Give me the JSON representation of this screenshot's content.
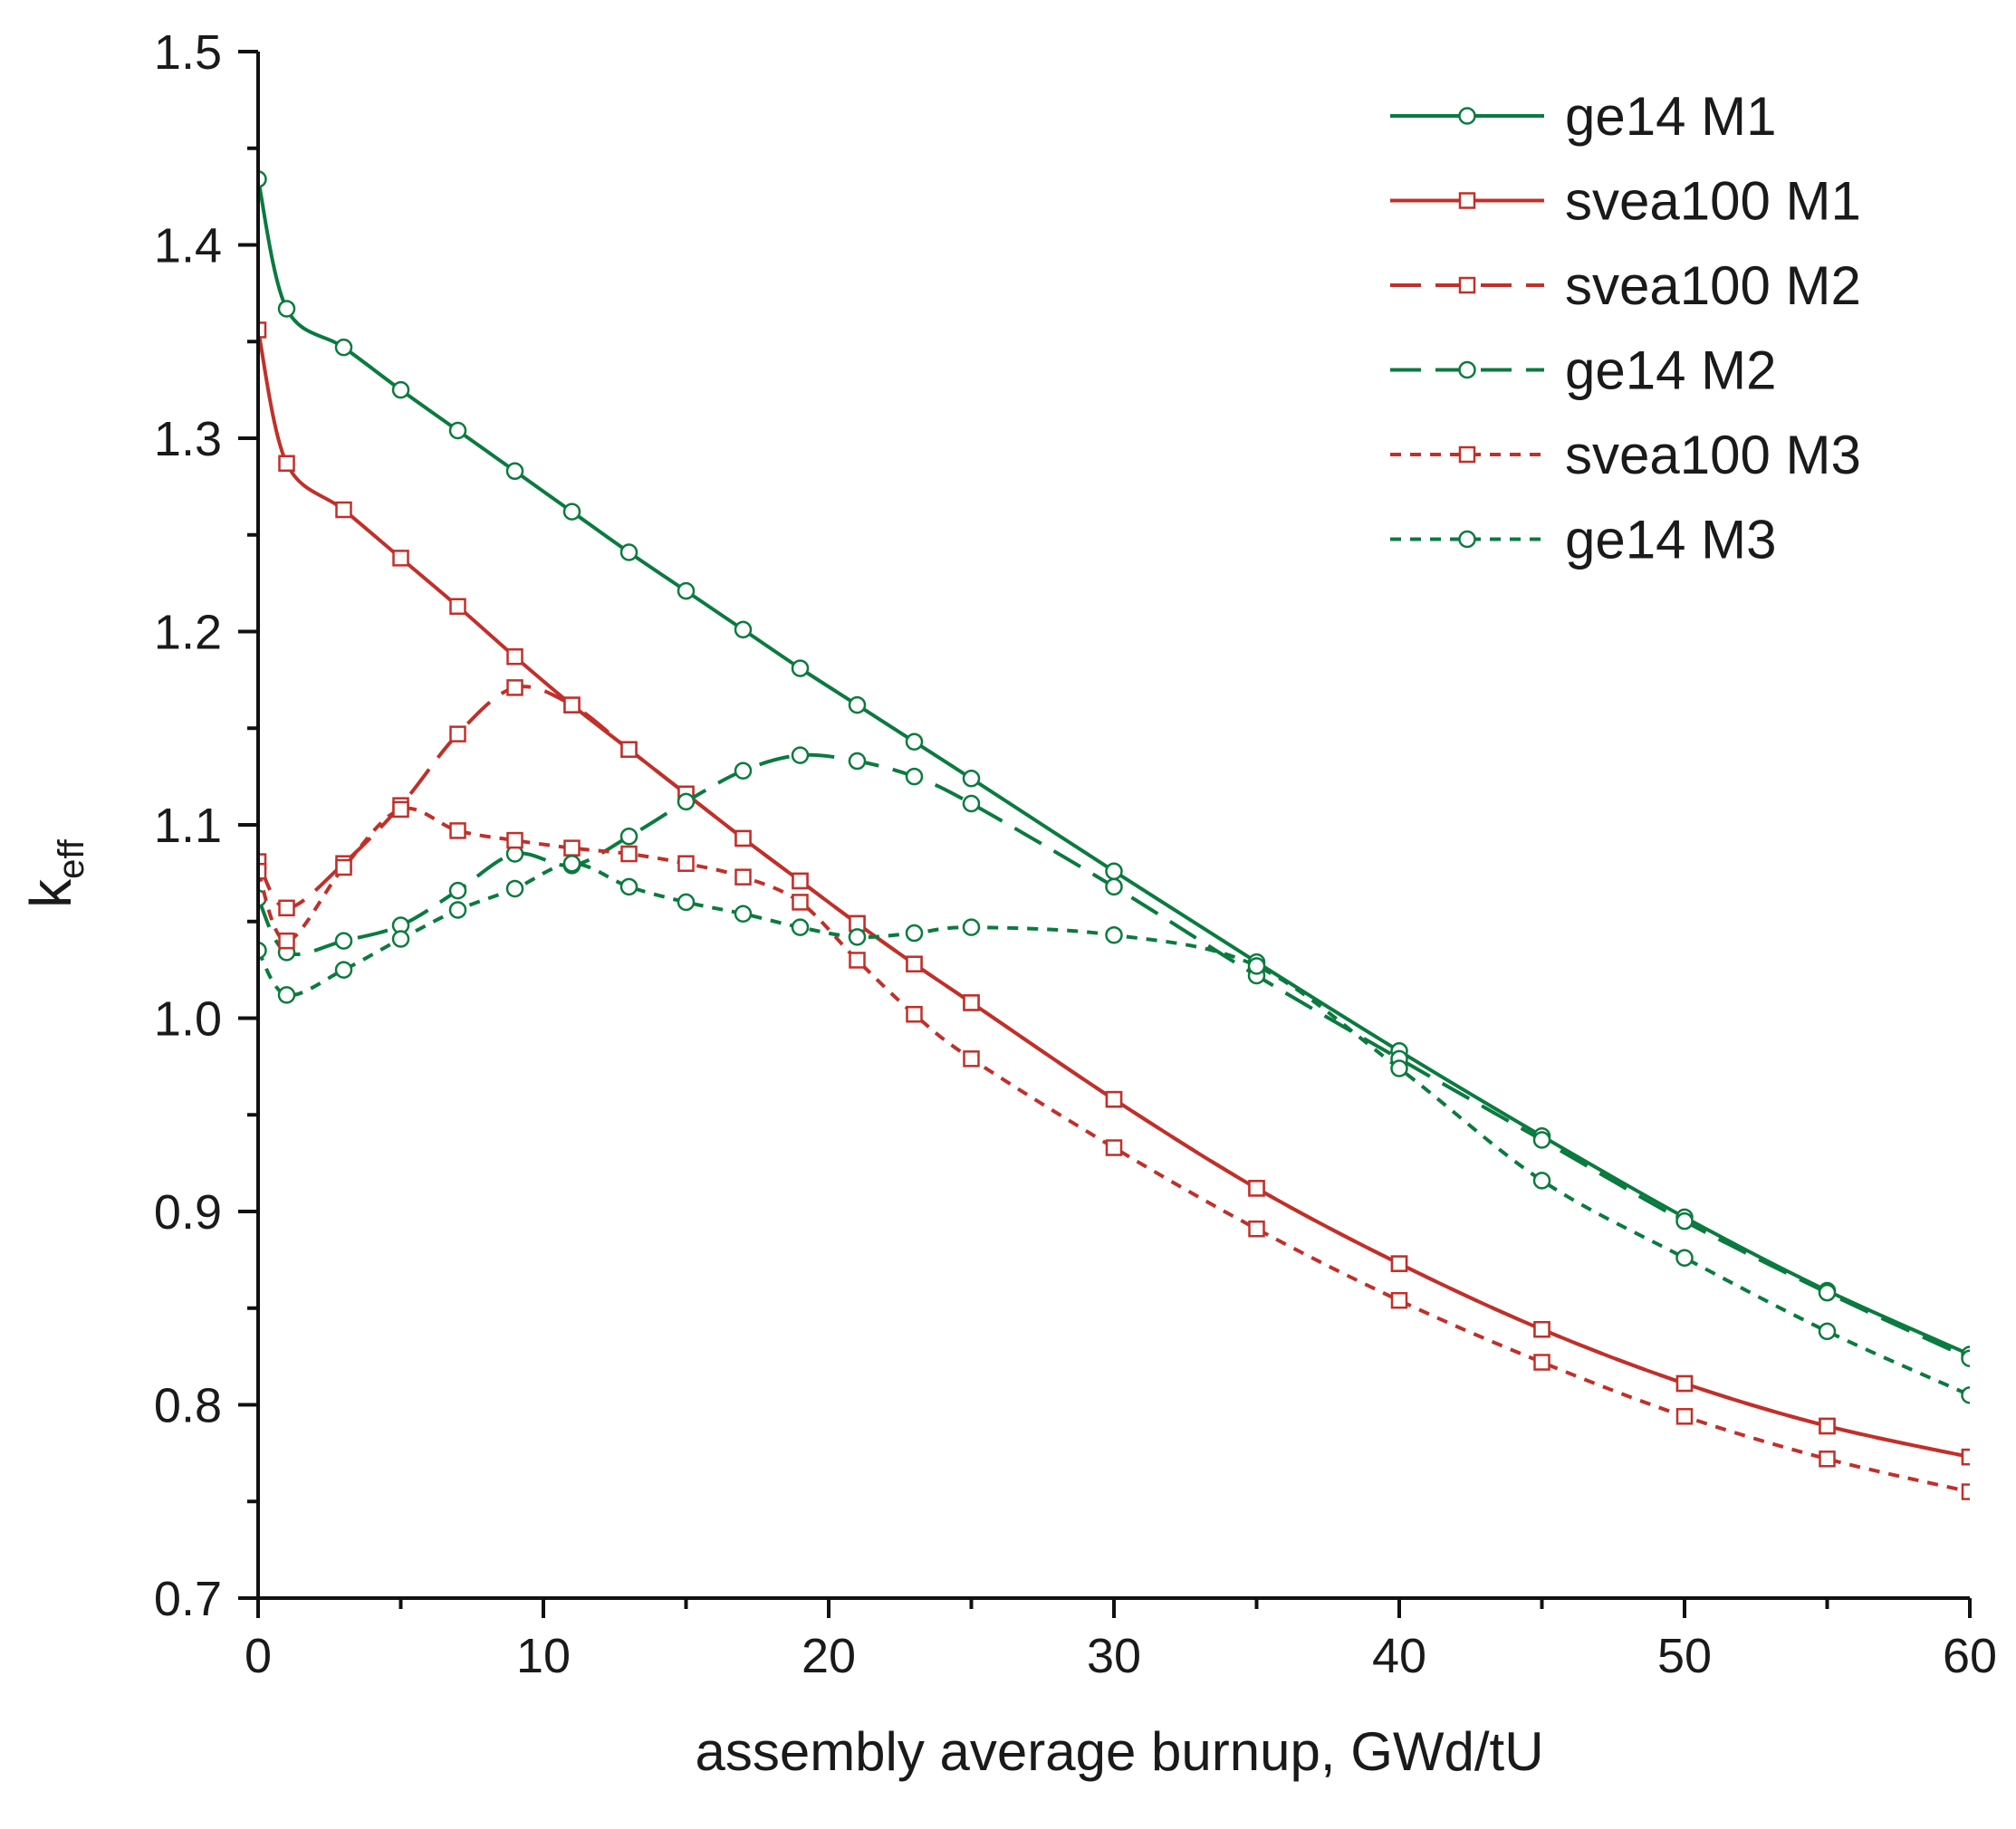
{
  "chart_data": {
    "type": "line",
    "title": "",
    "xlabel": "assembly average burnup, GWd/tU",
    "ylabel_main": "k",
    "ylabel_sub": "eff",
    "xlim": [
      0,
      60
    ],
    "ylim": [
      0.7,
      1.5
    ],
    "x_ticks": [
      0,
      10,
      20,
      30,
      40,
      50,
      60
    ],
    "y_ticks": [
      0.7,
      0.8,
      0.9,
      1.0,
      1.1,
      1.2,
      1.3,
      1.4,
      1.5
    ],
    "x_tick_labels": [
      "0",
      "10",
      "20",
      "30",
      "40",
      "50",
      "60"
    ],
    "y_tick_labels": [
      "0.7",
      "0.8",
      "0.9",
      "1.0",
      "1.1",
      "1.2",
      "1.3",
      "1.4",
      "1.5"
    ],
    "grid": false,
    "legend_position": "top-right",
    "series": [
      {
        "name": "ge14 M1",
        "color": "#0b7a3f",
        "dash": "solid",
        "marker": "circle",
        "x": [
          0,
          1,
          3,
          5,
          7,
          9,
          11,
          13,
          15,
          17,
          19,
          21,
          23,
          25,
          30,
          35,
          40,
          45,
          50,
          55,
          60
        ],
        "y": [
          1.434,
          1.367,
          1.347,
          1.325,
          1.304,
          1.283,
          1.262,
          1.241,
          1.221,
          1.201,
          1.181,
          1.162,
          1.143,
          1.124,
          1.076,
          1.029,
          0.983,
          0.939,
          0.897,
          0.859,
          0.826
        ]
      },
      {
        "name": "svea100 M1",
        "color": "#c0302a",
        "dash": "solid",
        "marker": "square",
        "x": [
          0,
          1,
          3,
          5,
          7,
          9,
          11,
          13,
          15,
          17,
          19,
          21,
          23,
          25,
          30,
          35,
          40,
          45,
          50,
          55,
          60
        ],
        "y": [
          1.356,
          1.287,
          1.263,
          1.238,
          1.213,
          1.187,
          1.162,
          1.139,
          1.116,
          1.093,
          1.071,
          1.049,
          1.028,
          1.008,
          0.958,
          0.912,
          0.873,
          0.839,
          0.811,
          0.789,
          0.773
        ]
      },
      {
        "name": "svea100 M2",
        "color": "#c0302a",
        "dash": "long",
        "marker": "square",
        "x": [
          0,
          1,
          3,
          5,
          7,
          9,
          11,
          13,
          15,
          17,
          19,
          21,
          23,
          25,
          30,
          35,
          40,
          45,
          50,
          55,
          60
        ],
        "y": [
          1.081,
          1.057,
          1.08,
          1.11,
          1.147,
          1.171,
          1.162,
          1.139,
          1.116,
          1.093,
          1.071,
          1.049,
          1.028,
          1.008,
          0.958,
          0.912,
          0.873,
          0.839,
          0.811,
          0.789,
          0.773
        ]
      },
      {
        "name": "ge14 M2",
        "color": "#0b7a3f",
        "dash": "long",
        "marker": "circle",
        "x": [
          0,
          1,
          3,
          5,
          7,
          9,
          11,
          13,
          15,
          17,
          19,
          21,
          23,
          25,
          30,
          35,
          40,
          45,
          50,
          55,
          60
        ],
        "y": [
          1.062,
          1.034,
          1.04,
          1.048,
          1.066,
          1.085,
          1.079,
          1.094,
          1.112,
          1.128,
          1.136,
          1.133,
          1.125,
          1.111,
          1.068,
          1.022,
          0.979,
          0.937,
          0.895,
          0.858,
          0.824
        ]
      },
      {
        "name": "svea100 M3",
        "color": "#c0302a",
        "dash": "short",
        "marker": "square",
        "x": [
          0,
          1,
          3,
          5,
          7,
          9,
          11,
          13,
          15,
          17,
          19,
          21,
          23,
          25,
          30,
          35,
          40,
          45,
          50,
          55,
          60
        ],
        "y": [
          1.076,
          1.04,
          1.078,
          1.108,
          1.097,
          1.092,
          1.088,
          1.085,
          1.08,
          1.073,
          1.06,
          1.03,
          1.002,
          0.979,
          0.933,
          0.891,
          0.854,
          0.822,
          0.794,
          0.772,
          0.755
        ]
      },
      {
        "name": "ge14 M3",
        "color": "#0b7a3f",
        "dash": "short",
        "marker": "circle",
        "x": [
          0,
          1,
          3,
          5,
          7,
          9,
          11,
          13,
          15,
          17,
          19,
          21,
          23,
          25,
          30,
          35,
          40,
          45,
          50,
          55,
          60
        ],
        "y": [
          1.035,
          1.012,
          1.025,
          1.041,
          1.056,
          1.067,
          1.08,
          1.068,
          1.06,
          1.054,
          1.047,
          1.042,
          1.044,
          1.047,
          1.043,
          1.027,
          0.974,
          0.916,
          0.876,
          0.838,
          0.805
        ]
      }
    ]
  }
}
